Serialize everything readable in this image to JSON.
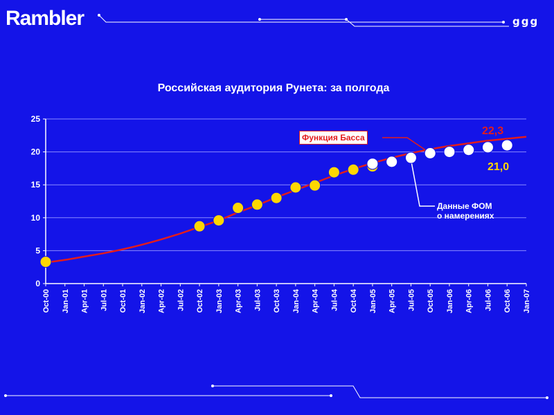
{
  "header": {
    "logo_text": "Rambler",
    "logo_glyphs": "ggg"
  },
  "chart_data": {
    "type": "line",
    "title": "Российская аудитория Рунета: за полгода",
    "x_tick_labels": [
      "Oct-00",
      "Jan-01",
      "Apr-01",
      "Jul-01",
      "Oct-01",
      "Jan-02",
      "Apr-02",
      "Jul-02",
      "Oct-02",
      "Jan-03",
      "Apr-03",
      "Jul-03",
      "Oct-03",
      "Jan-04",
      "Apr-04",
      "Jul-04",
      "Oct-04",
      "Jan-05",
      "Apr-05",
      "Jul-05",
      "Oct-05",
      "Jan-06",
      "Apr-06",
      "Jul-06",
      "Oct-06",
      "Jan-07"
    ],
    "y_ticks": [
      0,
      5,
      10,
      15,
      20,
      25
    ],
    "ylim": [
      0,
      25
    ],
    "grid": true,
    "series": [
      {
        "name": "Функция Басса",
        "kind": "line",
        "color": "#e31c1c",
        "x": [
          "Oct-00",
          "Jan-01",
          "Apr-01",
          "Jul-01",
          "Oct-01",
          "Jan-02",
          "Apr-02",
          "Jul-02",
          "Oct-02",
          "Jan-03",
          "Apr-03",
          "Jul-03",
          "Oct-03",
          "Jan-04",
          "Apr-04",
          "Jul-04",
          "Oct-04",
          "Jan-05",
          "Apr-05",
          "Jul-05",
          "Oct-05",
          "Jan-06",
          "Apr-06",
          "Jul-06",
          "Oct-06",
          "Jan-07"
        ],
        "values": [
          3.2,
          3.6,
          4.1,
          4.6,
          5.2,
          5.9,
          6.7,
          7.6,
          8.6,
          9.6,
          10.8,
          11.9,
          13.1,
          14.2,
          15.3,
          16.4,
          17.4,
          18.3,
          19.1,
          19.8,
          20.4,
          20.9,
          21.3,
          21.7,
          22.0,
          22.3
        ]
      },
      {
        "name": "",
        "kind": "markers",
        "color": "#ffd700",
        "x": [
          "Oct-00",
          "Oct-02",
          "Jan-03",
          "Apr-03",
          "Jul-03",
          "Oct-03",
          "Jan-04",
          "Apr-04",
          "Jul-04",
          "Oct-04",
          "Jan-05"
        ],
        "values": [
          3.3,
          8.7,
          9.6,
          11.5,
          12.0,
          13.0,
          14.6,
          14.9,
          16.9,
          17.3,
          17.8
        ]
      },
      {
        "name": "Данные ФОМ о намерениях",
        "kind": "markers",
        "color": "#ffffff",
        "x": [
          "Jan-05",
          "Apr-05",
          "Jul-05",
          "Oct-05",
          "Jan-06",
          "Apr-06",
          "Jul-06",
          "Oct-06"
        ],
        "values": [
          18.2,
          18.5,
          19.1,
          19.8,
          20.0,
          20.3,
          20.7,
          21.0
        ]
      }
    ],
    "annotations": {
      "bass_label": "Функция Басса",
      "fom_line1": "Данные ФОМ",
      "fom_line2": "о намерениях",
      "end_value_red": "22,3",
      "end_value_yellow": "21,0"
    }
  }
}
